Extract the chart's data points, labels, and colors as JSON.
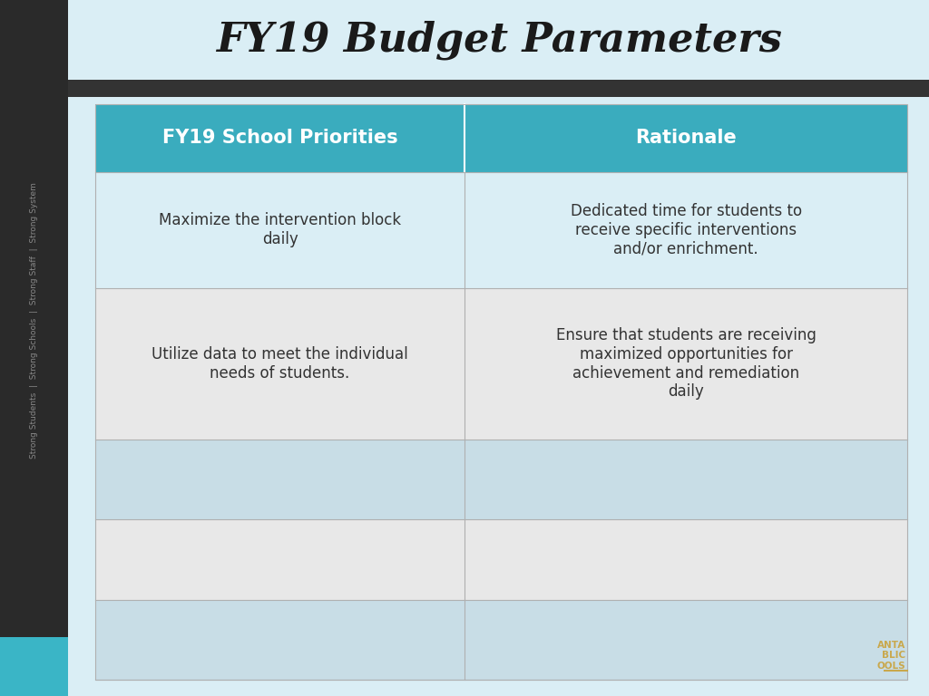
{
  "title": "FY19 Budget Parameters",
  "title_fontsize": 32,
  "title_style": "italic",
  "title_font": "serif",
  "bg_color": "#daeef5",
  "dark_sidebar_color": "#2a2a2a",
  "teal_accent_color": "#3ab5c6",
  "header_bg": "#3aacbe",
  "header_text_color": "#ffffff",
  "header_fontsize": 15,
  "col1_header": "FY19 School Priorities",
  "col2_header": "Rationale",
  "rows": [
    {
      "col1": "Maximize the intervention block\ndaily",
      "col2": "Dedicated time for students to\nreceive specific interventions\nand/or enrichment.",
      "bg": "#daeef5"
    },
    {
      "col1": "Utilize data to meet the individual\nneeds of students.",
      "col2": "Ensure that students are receiving\nmaximized opportunities for\nachievement and remediation\ndaily",
      "bg": "#e8e8e8"
    },
    {
      "col1": "",
      "col2": "",
      "bg": "#c8dde6"
    },
    {
      "col1": "",
      "col2": "",
      "bg": "#e8e8e8"
    },
    {
      "col1": "",
      "col2": "",
      "bg": "#c8dde6"
    }
  ],
  "sidebar_text": "Strong Students  |  Strong Schools  |  Strong Staff  |  Strong System",
  "sidebar_text_color": "#888888",
  "sidebar_fontsize": 6.5,
  "logo_color": "#c9a84c",
  "cell_text_fontsize": 12,
  "cell_text_color": "#333333",
  "dark_bar_color": "#333333"
}
